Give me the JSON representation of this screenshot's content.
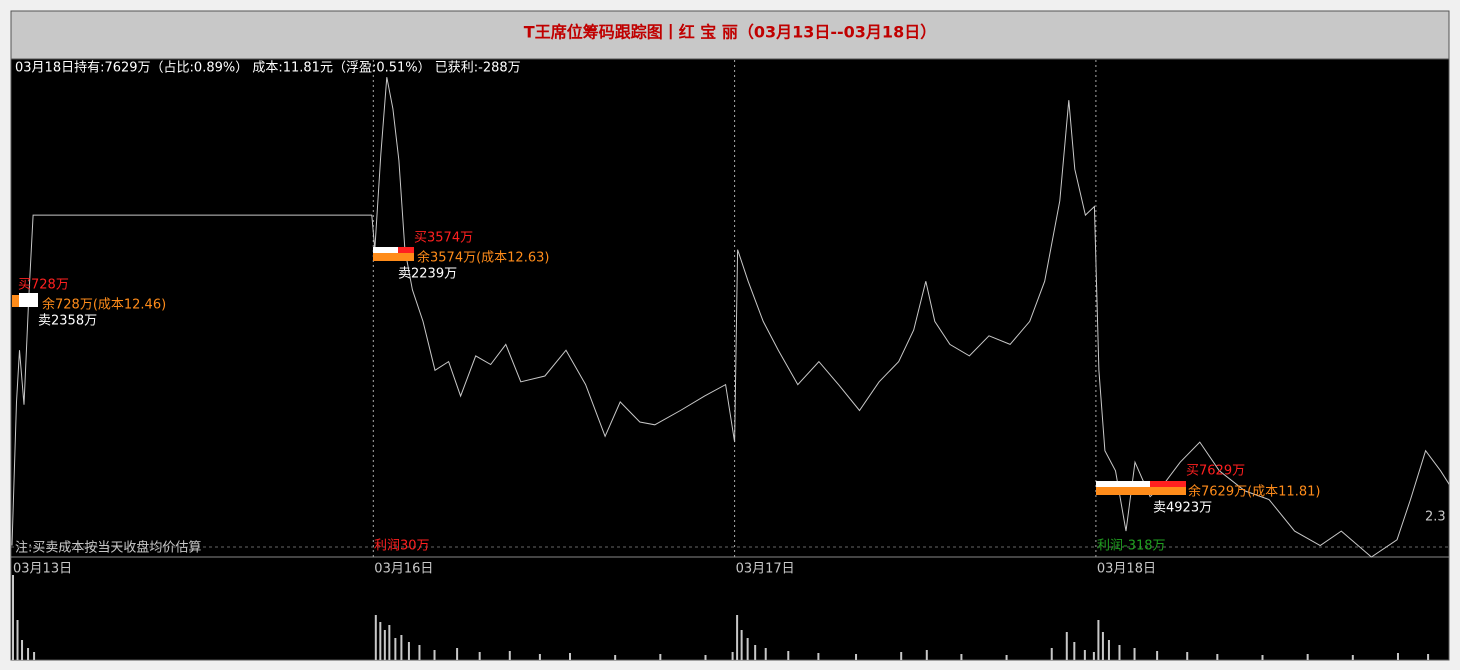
{
  "chart_data": {
    "type": "line",
    "title": "T王席位筹码跟踪图丨红 宝 丽（03月13日--03月18日）",
    "subtitle": "03月18日持有:7629万（占比:0.89%） 成本:11.81元（浮盈:0.51%） 已获利:-288万",
    "note": "注:买卖成本按当天收盘均价估算",
    "xlim": [
      0,
      960
    ],
    "xticks": [
      {
        "value": 0,
        "label": "03月13日"
      },
      {
        "value": 240,
        "label": "03月16日"
      },
      {
        "value": 480,
        "label": "03月17日"
      },
      {
        "value": 720,
        "label": "03月18日"
      }
    ],
    "ylim": [
      11.58,
      13.31
    ],
    "series": [
      {
        "color": "#c8c8c8",
        "x": [
          0,
          3,
          5,
          8,
          11,
          14,
          239,
          241,
          245,
          249,
          253,
          257,
          261,
          266,
          273,
          281,
          290,
          298,
          308,
          318,
          328,
          338,
          354,
          368,
          381,
          394,
          404,
          417,
          427,
          444,
          460,
          474,
          480,
          482,
          489,
          499,
          509,
          522,
          536,
          549,
          563,
          576,
          589,
          599,
          607,
          613,
          623,
          636,
          649,
          663,
          676,
          686,
          696,
          702,
          706,
          713,
          719,
          722,
          726,
          733,
          740,
          746,
          756,
          766,
          776,
          789,
          802,
          819,
          835,
          852,
          869,
          883,
          903,
          920,
          929,
          939,
          949,
          955
        ],
        "values": [
          11.62,
          12.12,
          12.3,
          12.11,
          12.47,
          12.77,
          12.77,
          12.65,
          12.98,
          13.25,
          13.14,
          12.96,
          12.65,
          12.51,
          12.4,
          12.23,
          12.26,
          12.14,
          12.28,
          12.25,
          12.32,
          12.19,
          12.21,
          12.3,
          12.18,
          12.0,
          12.12,
          12.05,
          12.04,
          12.09,
          12.14,
          12.18,
          11.98,
          12.65,
          12.54,
          12.4,
          12.3,
          12.18,
          12.26,
          12.18,
          12.09,
          12.19,
          12.26,
          12.37,
          12.54,
          12.4,
          12.32,
          12.28,
          12.35,
          12.32,
          12.4,
          12.54,
          12.82,
          13.17,
          12.93,
          12.77,
          12.8,
          12.23,
          11.95,
          11.88,
          11.67,
          11.91,
          11.79,
          11.84,
          11.91,
          11.98,
          11.88,
          11.81,
          11.78,
          11.67,
          11.62,
          11.67,
          11.58,
          11.64,
          11.78,
          11.95,
          11.88,
          11.83
        ]
      }
    ],
    "volume": {
      "color": "#c8c8c8",
      "x": [
        0,
        3,
        6,
        10,
        14,
        241,
        244,
        247,
        250,
        254,
        258,
        263,
        270,
        280,
        295,
        310,
        330,
        350,
        370,
        400,
        430,
        460,
        478,
        481,
        484,
        488,
        493,
        500,
        515,
        535,
        560,
        590,
        607,
        630,
        660,
        690,
        700,
        705,
        712,
        718,
        721,
        724,
        728,
        735,
        745,
        760,
        780,
        800,
        830,
        860,
        890,
        920,
        940,
        955
      ],
      "values": [
        85,
        40,
        20,
        12,
        8,
        45,
        38,
        30,
        35,
        22,
        25,
        18,
        15,
        10,
        12,
        8,
        9,
        6,
        7,
        5,
        6,
        5,
        8,
        45,
        30,
        22,
        15,
        12,
        9,
        7,
        6,
        8,
        10,
        6,
        5,
        12,
        28,
        18,
        10,
        8,
        40,
        28,
        20,
        15,
        12,
        9,
        8,
        6,
        5,
        6,
        5,
        7,
        6,
        5
      ]
    },
    "annotations": [
      {
        "text": "买728万",
        "color": "#ff2020"
      },
      {
        "text": "余728万(成本12.46)",
        "color": "#ff8c1a"
      },
      {
        "text": "卖2358万",
        "color": "#ffffff"
      },
      {
        "text": "买3574万",
        "color": "#ff2020"
      },
      {
        "text": "余3574万(成本12.63)",
        "color": "#ff8c1a"
      },
      {
        "text": "卖2239万",
        "color": "#ffffff"
      },
      {
        "text": "买7629万",
        "color": "#ff2020"
      },
      {
        "text": "余7629万(成本11.81)",
        "color": "#ff8c1a"
      },
      {
        "text": "卖4923万",
        "color": "#ffffff"
      },
      {
        "text": "利润30万",
        "color": "#ff2020"
      },
      {
        "text": "利润-318万",
        "color": "#20a020"
      }
    ],
    "right_label": "2.3"
  }
}
